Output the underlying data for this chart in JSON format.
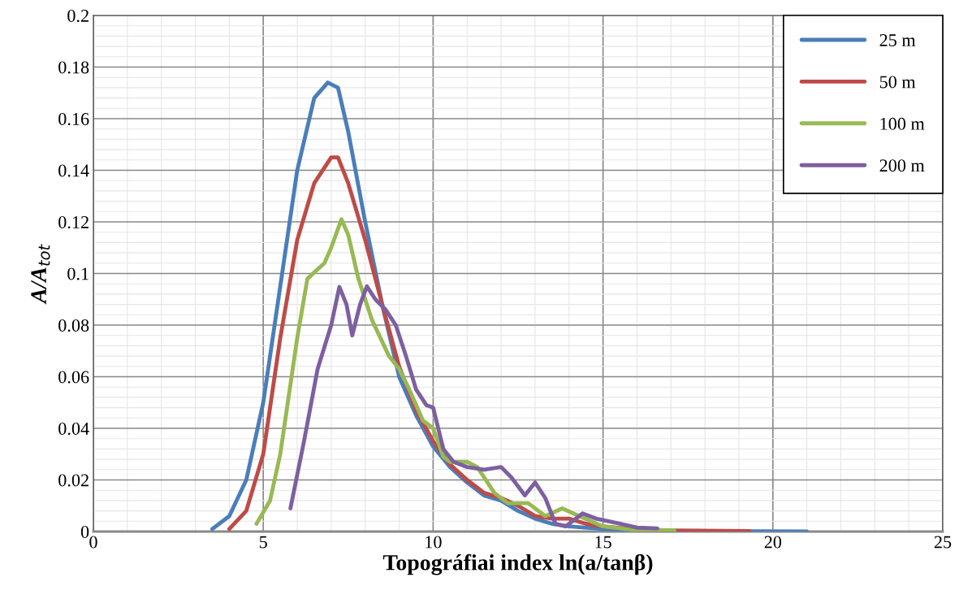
{
  "chart_data": {
    "type": "line",
    "xlabel": "Topográfiai index ln(a/tanβ)",
    "ylabel": "A/A$_{tot}$",
    "xlim": [
      0,
      25
    ],
    "xticks": [
      0,
      5,
      10,
      15,
      20,
      25
    ],
    "ylim": [
      0,
      0.2
    ],
    "yticks": [
      0,
      0.02,
      0.04,
      0.06,
      0.08,
      0.1,
      0.12,
      0.14,
      0.16,
      0.18,
      0.2
    ],
    "grid": true,
    "legend": "top right",
    "marker": "none",
    "line_style": "solid",
    "series": [
      {
        "name": "25 m",
        "color": "#4a7ebb",
        "x": [
          3.5,
          4,
          4.5,
          5,
          5.5,
          6,
          6.5,
          6.9,
          7.2,
          7.5,
          8,
          8.5,
          9,
          9.5,
          10,
          10.5,
          11,
          11.5,
          12,
          12.5,
          13,
          13.5,
          14,
          15,
          16,
          18,
          21
        ],
        "values": [
          0.001,
          0.006,
          0.02,
          0.05,
          0.095,
          0.14,
          0.168,
          0.174,
          0.172,
          0.155,
          0.12,
          0.088,
          0.06,
          0.045,
          0.033,
          0.025,
          0.019,
          0.014,
          0.012,
          0.008,
          0.005,
          0.003,
          0.002,
          0.001,
          0.0005,
          0.0002,
          0
        ]
      },
      {
        "name": "50 m",
        "color": "#be4b48",
        "x": [
          4,
          4.5,
          5,
          5.5,
          6,
          6.5,
          7,
          7.2,
          7.5,
          8,
          8.5,
          9,
          9.5,
          10,
          10.5,
          11,
          11.5,
          12,
          12.5,
          13,
          13.5,
          14,
          14.5,
          15,
          16,
          17,
          19.3
        ],
        "values": [
          0.001,
          0.008,
          0.03,
          0.075,
          0.113,
          0.135,
          0.145,
          0.145,
          0.135,
          0.113,
          0.088,
          0.064,
          0.047,
          0.035,
          0.026,
          0.02,
          0.015,
          0.013,
          0.01,
          0.006,
          0.005,
          0.005,
          0.003,
          0.002,
          0.0008,
          0.0004,
          0.0002
        ]
      },
      {
        "name": "100 m",
        "color": "#98b954",
        "x": [
          4.8,
          5.2,
          5.5,
          6,
          6.3,
          6.8,
          7,
          7.3,
          7.5,
          7.8,
          8.2,
          8.7,
          9,
          9.3,
          9.7,
          10,
          10.3,
          10.5,
          11,
          11.3,
          11.8,
          12.2,
          12.8,
          13.3,
          13.8,
          14.3,
          15,
          16,
          17.1
        ],
        "values": [
          0.003,
          0.012,
          0.03,
          0.075,
          0.098,
          0.104,
          0.11,
          0.121,
          0.115,
          0.098,
          0.082,
          0.068,
          0.063,
          0.055,
          0.043,
          0.04,
          0.029,
          0.027,
          0.027,
          0.025,
          0.015,
          0.011,
          0.011,
          0.006,
          0.009,
          0.006,
          0.002,
          0.0005,
          0.0005
        ]
      },
      {
        "name": "200 m",
        "color": "#7d60a0",
        "x": [
          5.8,
          6.2,
          6.6,
          7,
          7.24,
          7.45,
          7.62,
          7.85,
          8.05,
          8.3,
          8.6,
          8.9,
          9.2,
          9.5,
          9.8,
          10,
          10.3,
          10.6,
          11,
          11.5,
          12,
          12.3,
          12.7,
          13,
          13.3,
          13.6,
          13.9,
          14.4,
          14.8,
          15.5,
          16,
          16.6
        ],
        "values": [
          0.009,
          0.035,
          0.063,
          0.08,
          0.0948,
          0.088,
          0.076,
          0.088,
          0.095,
          0.09,
          0.086,
          0.08,
          0.068,
          0.055,
          0.049,
          0.048,
          0.032,
          0.027,
          0.025,
          0.024,
          0.025,
          0.021,
          0.014,
          0.019,
          0.013,
          0.003,
          0.002,
          0.007,
          0.005,
          0.003,
          0.0015,
          0.0012
        ]
      }
    ]
  }
}
